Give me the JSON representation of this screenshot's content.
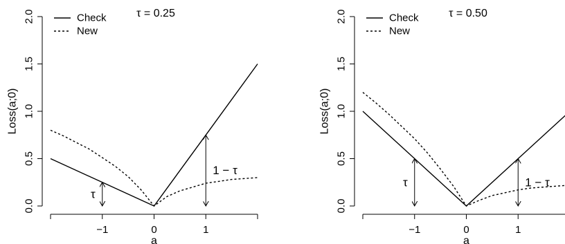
{
  "chart_data": [
    {
      "type": "line",
      "annotation_title": "τ = 0.25",
      "xlabel": "a",
      "ylabel": "Loss(a;0)",
      "xlim": [
        -2,
        2
      ],
      "ylim": [
        0,
        2
      ],
      "x_ticks": [
        -1,
        0,
        1
      ],
      "y_ticks": [
        0.0,
        0.5,
        1.0,
        1.5,
        2.0
      ],
      "x_tick_labels": [
        "−1",
        "0",
        "1"
      ],
      "y_tick_labels": [
        "0.0",
        "0.5",
        "1.0",
        "1.5",
        "2.0"
      ],
      "grid": false,
      "legend": {
        "placement": "top-left",
        "entries": [
          "Check",
          "New"
        ]
      },
      "series": [
        {
          "name": "Check",
          "style": "solid",
          "x": [
            -2,
            -1,
            0,
            1,
            2
          ],
          "y": [
            0.5,
            0.25,
            0.0,
            0.75,
            1.5
          ]
        },
        {
          "name": "New",
          "style": "dashed",
          "x": [
            -2,
            -1.75,
            -1.5,
            -1.25,
            -1,
            -0.75,
            -0.5,
            -0.25,
            0,
            0.25,
            0.5,
            0.75,
            1,
            1.25,
            1.5,
            1.75,
            2
          ],
          "y": [
            0.8,
            0.74,
            0.67,
            0.6,
            0.51,
            0.42,
            0.31,
            0.17,
            0.0,
            0.1,
            0.16,
            0.2,
            0.24,
            0.26,
            0.28,
            0.29,
            0.3
          ]
        }
      ],
      "annotations": [
        {
          "label": "τ",
          "x": -1,
          "y_from": 0.0,
          "y_to": 0.25,
          "label_side": "left"
        },
        {
          "label": "1 − τ",
          "x": 1,
          "y_from": 0.0,
          "y_to": 0.75,
          "label_side": "right"
        }
      ]
    },
    {
      "type": "line",
      "annotation_title": "τ = 0.50",
      "xlabel": "a",
      "ylabel": "Loss(a;0)",
      "xlim": [
        -2,
        2
      ],
      "ylim": [
        0,
        2
      ],
      "x_ticks": [
        -1,
        0,
        1
      ],
      "y_ticks": [
        0.0,
        0.5,
        1.0,
        1.5,
        2.0
      ],
      "x_tick_labels": [
        "−1",
        "0",
        "1"
      ],
      "y_tick_labels": [
        "0.0",
        "0.5",
        "1.0",
        "1.5",
        "2.0"
      ],
      "grid": false,
      "legend": {
        "placement": "top-left",
        "entries": [
          "Check",
          "New"
        ]
      },
      "series": [
        {
          "name": "Check",
          "style": "solid",
          "x": [
            -2,
            -1,
            0,
            1,
            2
          ],
          "y": [
            1.0,
            0.5,
            0.0,
            0.5,
            1.0
          ]
        },
        {
          "name": "New",
          "style": "dashed",
          "x": [
            -2,
            -1.75,
            -1.5,
            -1.25,
            -1,
            -0.75,
            -0.5,
            -0.25,
            0,
            0.25,
            0.5,
            0.75,
            1,
            1.25,
            1.5,
            1.75,
            2
          ],
          "y": [
            1.2,
            1.09,
            0.97,
            0.84,
            0.71,
            0.56,
            0.39,
            0.21,
            0.0,
            0.06,
            0.11,
            0.14,
            0.17,
            0.19,
            0.2,
            0.21,
            0.22
          ]
        }
      ],
      "annotations": [
        {
          "label": "τ",
          "x": -1,
          "y_from": 0.0,
          "y_to": 0.5,
          "label_side": "left"
        },
        {
          "label": "1 − τ",
          "x": 1,
          "y_from": 0.0,
          "y_to": 0.5,
          "label_side": "right"
        }
      ]
    }
  ]
}
